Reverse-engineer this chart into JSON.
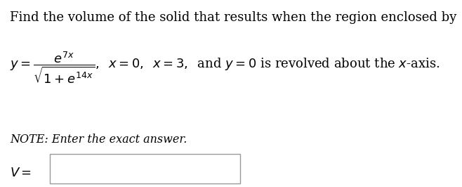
{
  "line1": "Find the volume of the solid that results when the region enclosed by",
  "note_line": "NOTE: Enter the exact answer.",
  "answer_label": "V =",
  "bg_color": "#ffffff",
  "text_color": "#000000",
  "font_size_main": 13.0,
  "font_size_note": 11.5,
  "font_size_formula": 13.0
}
